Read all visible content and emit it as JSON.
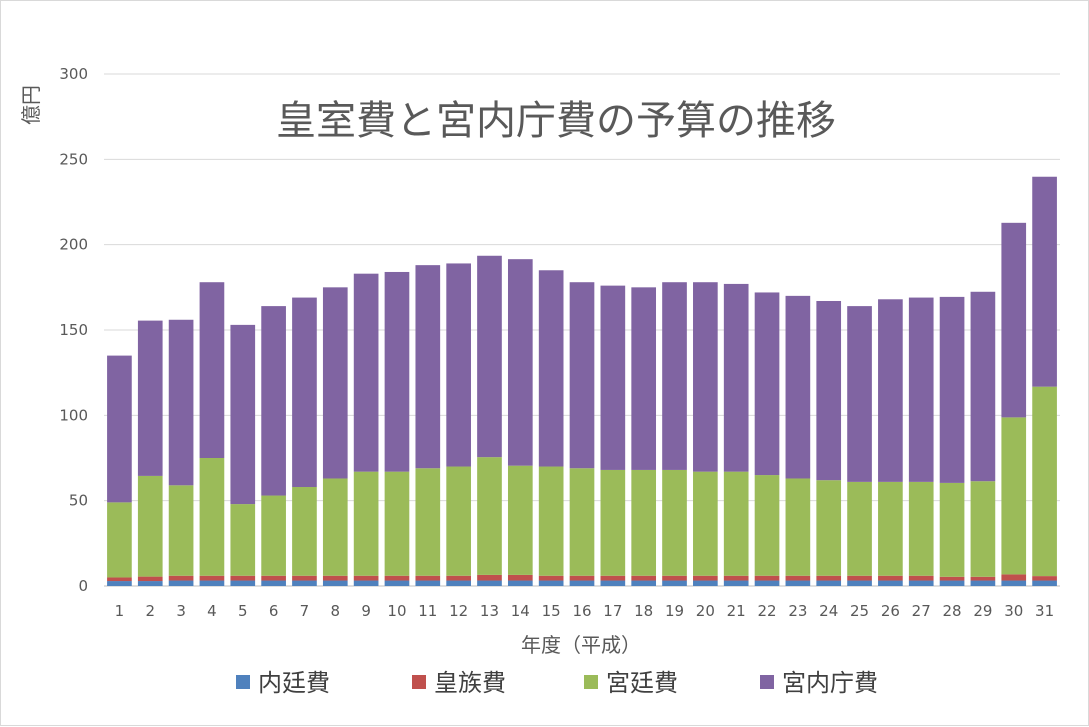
{
  "chart_data": {
    "type": "bar",
    "stacked": true,
    "title": "皇室費と宮内庁費の予算の推移",
    "xlabel": "年度（平成）",
    "ylabel": "億円",
    "ylim": [
      0,
      300
    ],
    "yticks": [
      0,
      50,
      100,
      150,
      200,
      250,
      300
    ],
    "grid": true,
    "legend_position": "bottom",
    "categories": [
      "1",
      "2",
      "3",
      "4",
      "5",
      "6",
      "7",
      "8",
      "9",
      "10",
      "11",
      "12",
      "13",
      "14",
      "15",
      "16",
      "17",
      "18",
      "19",
      "20",
      "21",
      "22",
      "23",
      "24",
      "25",
      "26",
      "27",
      "28",
      "29",
      "30",
      "31"
    ],
    "series": [
      {
        "name": "内廷費",
        "color": "#4f81bd",
        "values": [
          2.9,
          2.9,
          3.2,
          3.2,
          3.2,
          3.2,
          3.2,
          3.2,
          3.2,
          3.2,
          3.2,
          3.2,
          3.2,
          3.2,
          3.2,
          3.2,
          3.2,
          3.2,
          3.2,
          3.2,
          3.2,
          3.2,
          3.2,
          3.2,
          3.2,
          3.2,
          3.2,
          3.2,
          3.2,
          3.2,
          3.2
        ]
      },
      {
        "name": "皇族費",
        "color": "#c0504d",
        "values": [
          2.1,
          2.6,
          2.8,
          2.8,
          2.8,
          2.8,
          2.8,
          2.8,
          2.8,
          2.8,
          2.8,
          2.8,
          3.3,
          3.3,
          2.8,
          2.8,
          2.8,
          2.8,
          2.8,
          2.8,
          2.8,
          2.8,
          2.8,
          2.8,
          2.8,
          2.8,
          2.8,
          2.2,
          2.2,
          3.6,
          2.6
        ]
      },
      {
        "name": "宮廷費",
        "color": "#9bbb59",
        "values": [
          44,
          59,
          53,
          69,
          42,
          47,
          52,
          57,
          61,
          61,
          63,
          64,
          69,
          64,
          64,
          63,
          62,
          62,
          62,
          61,
          61,
          59,
          57,
          56,
          55,
          55,
          55,
          55,
          56,
          92,
          111
        ]
      },
      {
        "name": "宮内庁費",
        "color": "#8064a2",
        "values": [
          86,
          91,
          97,
          103,
          105,
          111,
          111,
          112,
          116,
          117,
          119,
          119,
          118,
          121,
          115,
          109,
          108,
          107,
          110,
          111,
          110,
          107,
          107,
          105,
          103,
          107,
          108,
          109,
          111,
          114,
          123
        ]
      }
    ]
  }
}
